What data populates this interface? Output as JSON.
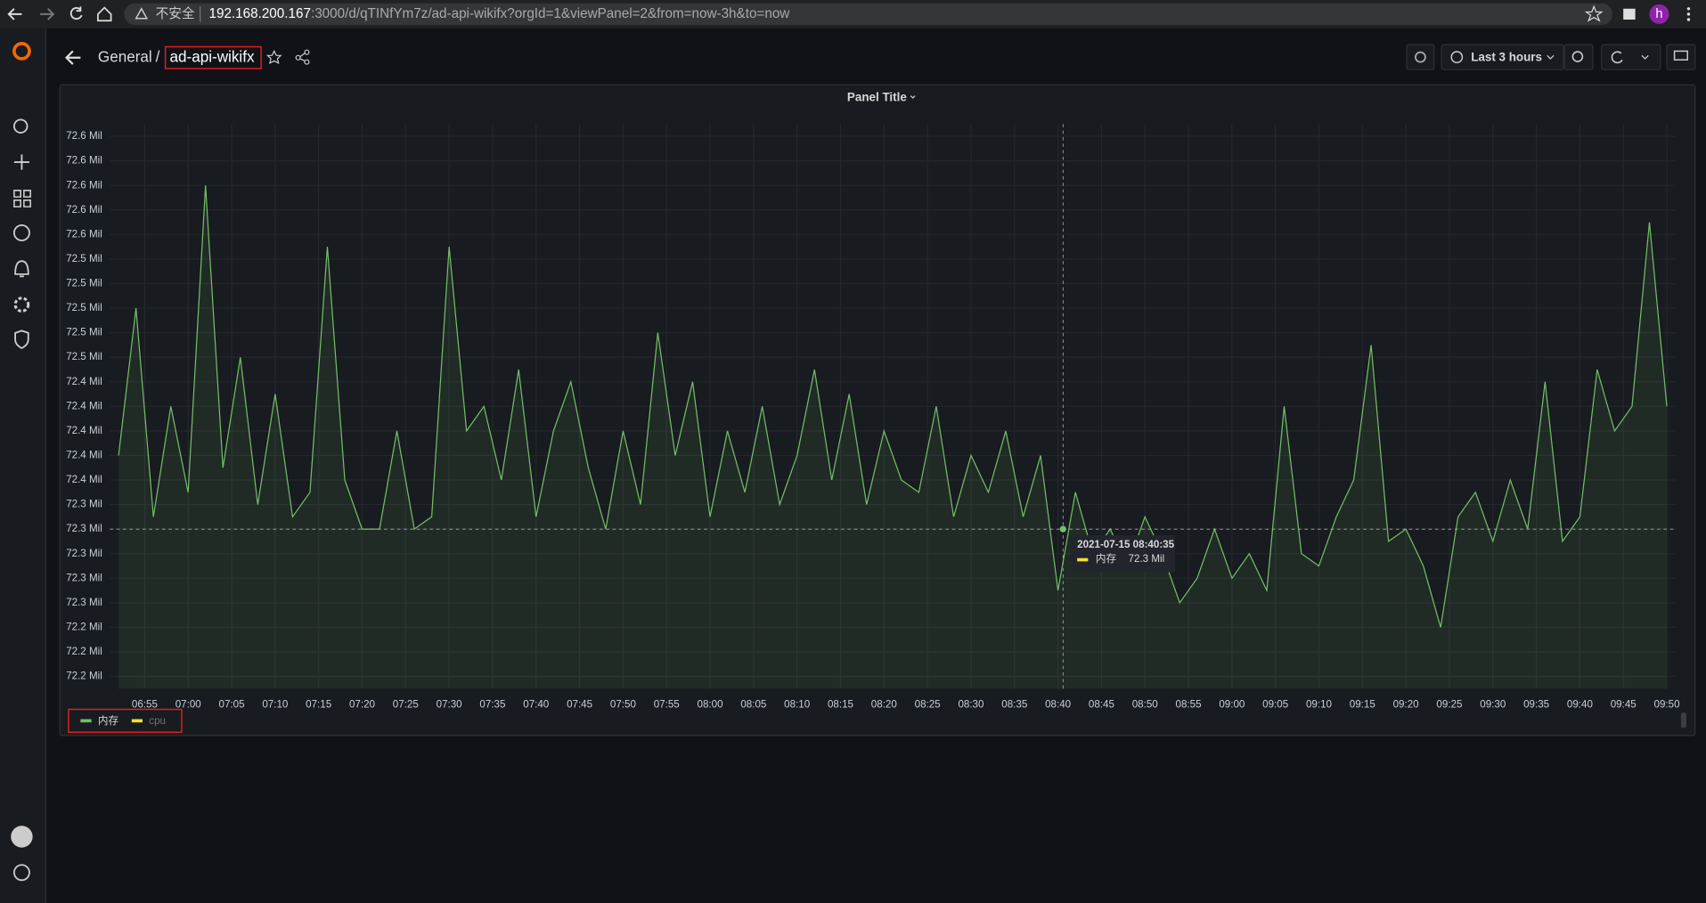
{
  "browser": {
    "security_label": "不安全",
    "url_host": "192.168.200.167",
    "url_path": ":3000/d/qTINfYm7z/ad-api-wikifx?orgId=1&viewPanel=2&from=now-3h&to=now",
    "profile_initial": "h"
  },
  "header": {
    "folder": "General",
    "separator": "/",
    "dashboard": "ad-api-wikifx",
    "time_range": "Last 3 hours"
  },
  "chart_data": {
    "type": "line",
    "title": "Panel Title",
    "x": [
      "06:52",
      "06:54",
      "06:56",
      "06:58",
      "07:00",
      "07:02",
      "07:04",
      "07:06",
      "07:08",
      "07:10",
      "07:12",
      "07:14",
      "07:16",
      "07:18",
      "07:20",
      "07:22",
      "07:24",
      "07:26",
      "07:28",
      "07:30",
      "07:32",
      "07:34",
      "07:36",
      "07:38",
      "07:40",
      "07:42",
      "07:44",
      "07:46",
      "07:48",
      "07:50",
      "07:52",
      "07:54",
      "07:56",
      "07:58",
      "08:00",
      "08:02",
      "08:04",
      "08:06",
      "08:08",
      "08:10",
      "08:12",
      "08:14",
      "08:16",
      "08:18",
      "08:20",
      "08:22",
      "08:24",
      "08:26",
      "08:28",
      "08:30",
      "08:32",
      "08:34",
      "08:36",
      "08:38",
      "08:40",
      "08:42",
      "08:44",
      "08:46",
      "08:48",
      "08:50",
      "08:52",
      "08:54",
      "08:56",
      "08:58",
      "09:00",
      "09:02",
      "09:04",
      "09:06",
      "09:08",
      "09:10",
      "09:12",
      "09:14",
      "09:16",
      "09:18",
      "09:20",
      "09:22",
      "09:24",
      "09:26",
      "09:28",
      "09:30",
      "09:32",
      "09:34",
      "09:36",
      "09:38",
      "09:40",
      "09:42",
      "09:44",
      "09:46",
      "09:48",
      "09:50"
    ],
    "xlim": [
      "06:51",
      "09:51"
    ],
    "xticks": [
      "06:55",
      "07:00",
      "07:05",
      "07:10",
      "07:15",
      "07:20",
      "07:25",
      "07:30",
      "07:35",
      "07:40",
      "07:45",
      "07:50",
      "07:55",
      "08:00",
      "08:05",
      "08:10",
      "08:15",
      "08:20",
      "08:25",
      "08:30",
      "08:35",
      "08:40",
      "08:45",
      "08:50",
      "08:55",
      "09:00",
      "09:05",
      "09:10",
      "09:15",
      "09:20",
      "09:25",
      "09:30",
      "09:35",
      "09:40",
      "09:45",
      "09:50"
    ],
    "ylim": [
      72.19,
      72.65
    ],
    "yticks": [
      {
        "value": 72.2,
        "label": "72.2 Mil"
      },
      {
        "value": 72.22,
        "label": "72.2 Mil"
      },
      {
        "value": 72.24,
        "label": "72.2 Mil"
      },
      {
        "value": 72.26,
        "label": "72.3 Mil"
      },
      {
        "value": 72.28,
        "label": "72.3 Mil"
      },
      {
        "value": 72.3,
        "label": "72.3 Mil"
      },
      {
        "value": 72.32,
        "label": "72.3 Mil"
      },
      {
        "value": 72.34,
        "label": "72.3 Mil"
      },
      {
        "value": 72.36,
        "label": "72.4 Mil"
      },
      {
        "value": 72.38,
        "label": "72.4 Mil"
      },
      {
        "value": 72.4,
        "label": "72.4 Mil"
      },
      {
        "value": 72.42,
        "label": "72.4 Mil"
      },
      {
        "value": 72.44,
        "label": "72.4 Mil"
      },
      {
        "value": 72.46,
        "label": "72.5 Mil"
      },
      {
        "value": 72.48,
        "label": "72.5 Mil"
      },
      {
        "value": 72.5,
        "label": "72.5 Mil"
      },
      {
        "value": 72.52,
        "label": "72.5 Mil"
      },
      {
        "value": 72.54,
        "label": "72.5 Mil"
      },
      {
        "value": 72.56,
        "label": "72.6 Mil"
      },
      {
        "value": 72.58,
        "label": "72.6 Mil"
      },
      {
        "value": 72.6,
        "label": "72.6 Mil"
      },
      {
        "value": 72.62,
        "label": "72.6 Mil"
      },
      {
        "value": 72.64,
        "label": "72.6 Mil"
      }
    ],
    "grid": true,
    "series": [
      {
        "name": "内存",
        "color": "#73bf69",
        "values": [
          72.38,
          72.5,
          72.33,
          72.42,
          72.35,
          72.6,
          72.37,
          72.46,
          72.34,
          72.43,
          72.33,
          72.35,
          72.55,
          72.36,
          72.32,
          72.32,
          72.4,
          72.32,
          72.33,
          72.55,
          72.4,
          72.42,
          72.36,
          72.45,
          72.33,
          72.4,
          72.44,
          72.37,
          72.32,
          72.4,
          72.34,
          72.48,
          72.38,
          72.44,
          72.33,
          72.4,
          72.35,
          72.42,
          72.34,
          72.38,
          72.45,
          72.36,
          72.43,
          72.34,
          72.4,
          72.36,
          72.35,
          72.42,
          72.33,
          72.38,
          72.35,
          72.4,
          72.33,
          72.38,
          72.27,
          72.35,
          72.3,
          72.32,
          72.29,
          72.33,
          72.3,
          72.26,
          72.28,
          72.32,
          72.28,
          72.3,
          72.27,
          72.42,
          72.3,
          72.29,
          72.33,
          72.36,
          72.47,
          72.31,
          72.32,
          72.29,
          72.24,
          72.33,
          72.35,
          72.31,
          72.36,
          72.32,
          72.44,
          72.31,
          72.33,
          72.45,
          72.4,
          72.42,
          72.57,
          72.42
        ]
      },
      {
        "name": "cpu",
        "color": "#fade2a",
        "hidden": true
      }
    ],
    "tooltip": {
      "time": "2021-07-15 08:40:35",
      "series": "内存",
      "value": 72.32,
      "value_label": "72.3 Mil"
    }
  }
}
